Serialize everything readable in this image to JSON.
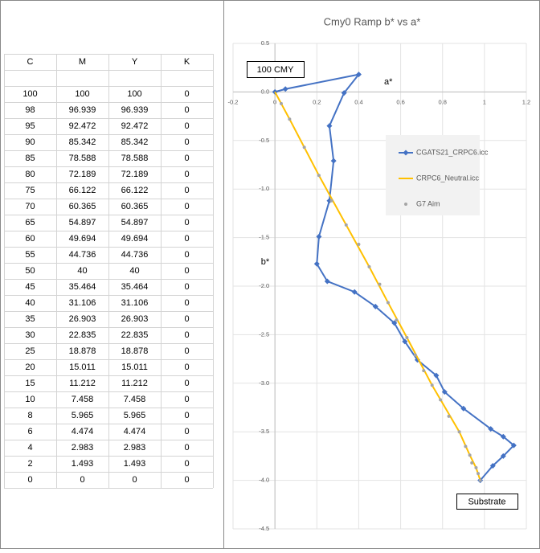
{
  "table": {
    "columns": [
      "C",
      "M",
      "Y",
      "K"
    ],
    "rows": [
      [
        100,
        100,
        100,
        0
      ],
      [
        98,
        96.939,
        96.939,
        0
      ],
      [
        95,
        92.472,
        92.472,
        0
      ],
      [
        90,
        85.342,
        85.342,
        0
      ],
      [
        85,
        78.588,
        78.588,
        0
      ],
      [
        80,
        72.189,
        72.189,
        0
      ],
      [
        75,
        66.122,
        66.122,
        0
      ],
      [
        70,
        60.365,
        60.365,
        0
      ],
      [
        65,
        54.897,
        54.897,
        0
      ],
      [
        60,
        49.694,
        49.694,
        0
      ],
      [
        55,
        44.736,
        44.736,
        0
      ],
      [
        50,
        40,
        40,
        0
      ],
      [
        45,
        35.464,
        35.464,
        0
      ],
      [
        40,
        31.106,
        31.106,
        0
      ],
      [
        35,
        26.903,
        26.903,
        0
      ],
      [
        30,
        22.835,
        22.835,
        0
      ],
      [
        25,
        18.878,
        18.878,
        0
      ],
      [
        20,
        15.011,
        15.011,
        0
      ],
      [
        15,
        11.212,
        11.212,
        0
      ],
      [
        10,
        7.458,
        7.458,
        0
      ],
      [
        8,
        5.965,
        5.965,
        0
      ],
      [
        6,
        4.474,
        4.474,
        0
      ],
      [
        4,
        2.983,
        2.983,
        0
      ],
      [
        2,
        1.493,
        1.493,
        0
      ],
      [
        0,
        0,
        0,
        0
      ]
    ]
  },
  "chart_data": {
    "type": "scatter",
    "title": "Cmy0 Ramp b* vs a*",
    "x_label": "a*",
    "y_label": "b*",
    "annotations": [
      "100 CMY",
      "Substrate"
    ],
    "xlim": [
      -0.2,
      1.2
    ],
    "xticks": [
      -0.2,
      0,
      0.2,
      0.4,
      0.6,
      0.8,
      1,
      1.2
    ],
    "ylim": [
      -4.5,
      0.5
    ],
    "yticks": [
      0.5,
      {
        "value": 0,
        "label": "0.0"
      },
      -0.5,
      {
        "value": -1,
        "label": "-1.0"
      },
      -1.5,
      {
        "value": -2,
        "label": "-2.0"
      },
      -2.5,
      {
        "value": -3,
        "label": "-3.0"
      },
      -3.5,
      {
        "value": -4,
        "label": "-4.0"
      },
      -4.5
    ],
    "grid": true,
    "series": [
      {
        "name": "CGATS21_CRPC6.icc",
        "color": "#4472c4",
        "style": "line-diamond",
        "x": [
          0,
          0.05,
          0.4,
          0.33,
          0.26,
          0.28,
          0.26,
          0.21,
          0.2,
          0.25,
          0.38,
          0.48,
          0.57,
          0.62,
          0.68,
          0.77,
          0.81,
          0.9,
          1.03,
          1.09,
          1.14,
          1.09,
          1.04,
          0.98
        ],
        "values": [
          0,
          0.03,
          0.18,
          -0.01,
          -0.35,
          -0.71,
          -1.12,
          -1.49,
          -1.77,
          -1.95,
          -2.06,
          -2.21,
          -2.38,
          -2.57,
          -2.76,
          -2.92,
          -3.09,
          -3.26,
          -3.47,
          -3.55,
          -3.64,
          -3.75,
          -3.85,
          -4.0
        ]
      },
      {
        "name": "CRPC6_Neutral.icc",
        "color": "#ffc000",
        "style": "line",
        "x": [
          0,
          0.07,
          0.21,
          0.34,
          0.45,
          0.54,
          0.63,
          0.75,
          0.88,
          0.93,
          0.96,
          0.98
        ],
        "values": [
          0,
          -0.28,
          -0.86,
          -1.37,
          -1.8,
          -2.17,
          -2.53,
          -3.02,
          -3.5,
          -3.74,
          -3.87,
          -4.0
        ]
      },
      {
        "name": "G7 Aim",
        "color": "#a5a5a5",
        "style": "dot",
        "x": [
          0.03,
          0.07,
          0.14,
          0.21,
          0.27,
          0.34,
          0.4,
          0.45,
          0.5,
          0.54,
          0.58,
          0.63,
          0.67,
          0.71,
          0.75,
          0.79,
          0.83,
          0.88,
          0.91,
          0.93,
          0.94,
          0.96,
          0.97,
          0.98
        ],
        "values": [
          -0.12,
          -0.28,
          -0.57,
          -0.86,
          -1.12,
          -1.37,
          -1.57,
          -1.8,
          -1.98,
          -2.17,
          -2.35,
          -2.53,
          -2.71,
          -2.87,
          -3.02,
          -3.17,
          -3.34,
          -3.5,
          -3.65,
          -3.74,
          -3.82,
          -3.87,
          -3.93,
          -4.0
        ]
      }
    ]
  }
}
